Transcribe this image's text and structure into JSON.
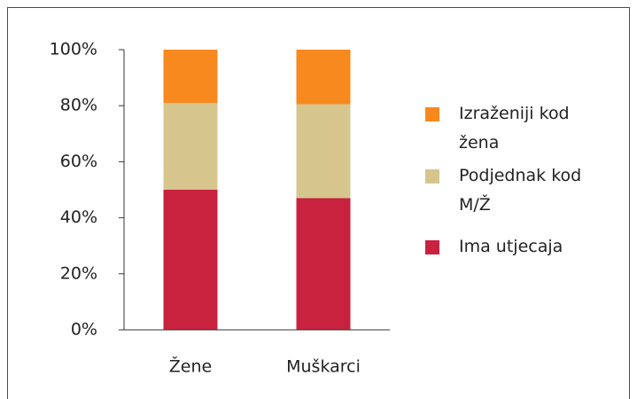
{
  "chart_data": {
    "type": "stacked_bar",
    "categories": [
      "Žene",
      "Muškarci"
    ],
    "series": [
      {
        "name": "Ima utjecaja",
        "color": "#c8223f",
        "values": [
          50,
          47
        ]
      },
      {
        "name": "Podjednak kod M/Ž",
        "color": "#d6c68e",
        "values": [
          31,
          33.5
        ]
      },
      {
        "name": "Izraženiji kod žena",
        "color": "#f7891f",
        "values": [
          19,
          19.5
        ]
      }
    ],
    "ylim": [
      0,
      100
    ],
    "yticks": [
      {
        "value": 0,
        "label": "0%"
      },
      {
        "value": 20,
        "label": "20%"
      },
      {
        "value": 40,
        "label": "40%"
      },
      {
        "value": 60,
        "label": "60%"
      },
      {
        "value": 80,
        "label": "80%"
      },
      {
        "value": 100,
        "label": "100%"
      }
    ],
    "legend": "right"
  }
}
